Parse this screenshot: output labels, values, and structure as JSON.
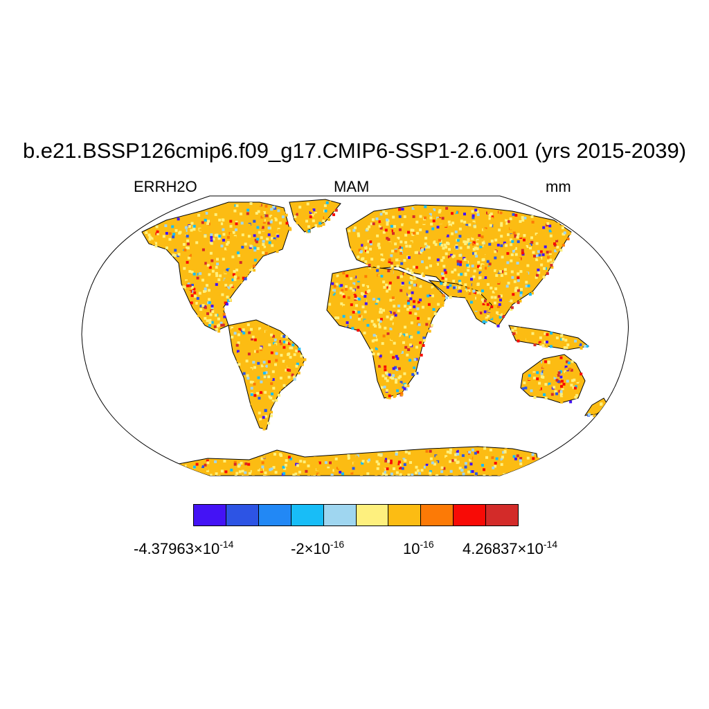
{
  "title": "b.e21.BSSP126cmip6.f09_g17.CMIP6-SSP1-2.6.001 (yrs 2015-2039)",
  "subtitle_left": "ERRH2O",
  "subtitle_center": "MAM",
  "subtitle_right": "mm",
  "colorbar": {
    "colors": [
      "#4413f5",
      "#2d54e4",
      "#2288f5",
      "#18bdf7",
      "#9fd6f0",
      "#fef07e",
      "#fcbc13",
      "#fc7a06",
      "#f80b06",
      "#d32b29"
    ],
    "labels": [
      {
        "mantissa": "-4.37963",
        "times": "×",
        "base": "10",
        "exp": "-14"
      },
      {
        "mantissa": "-2",
        "times": "×",
        "base": "10",
        "exp": "-16"
      },
      {
        "mantissa": "",
        "times": "",
        "base": "10",
        "exp": "-16"
      },
      {
        "mantissa": "4.26837",
        "times": "×",
        "base": "10",
        "exp": "-14"
      }
    ]
  },
  "map": {
    "projection": "Robinson",
    "ocean_color": "#ffffff",
    "coastline_color": "#000000",
    "dominant_color": "#fcbc13"
  }
}
